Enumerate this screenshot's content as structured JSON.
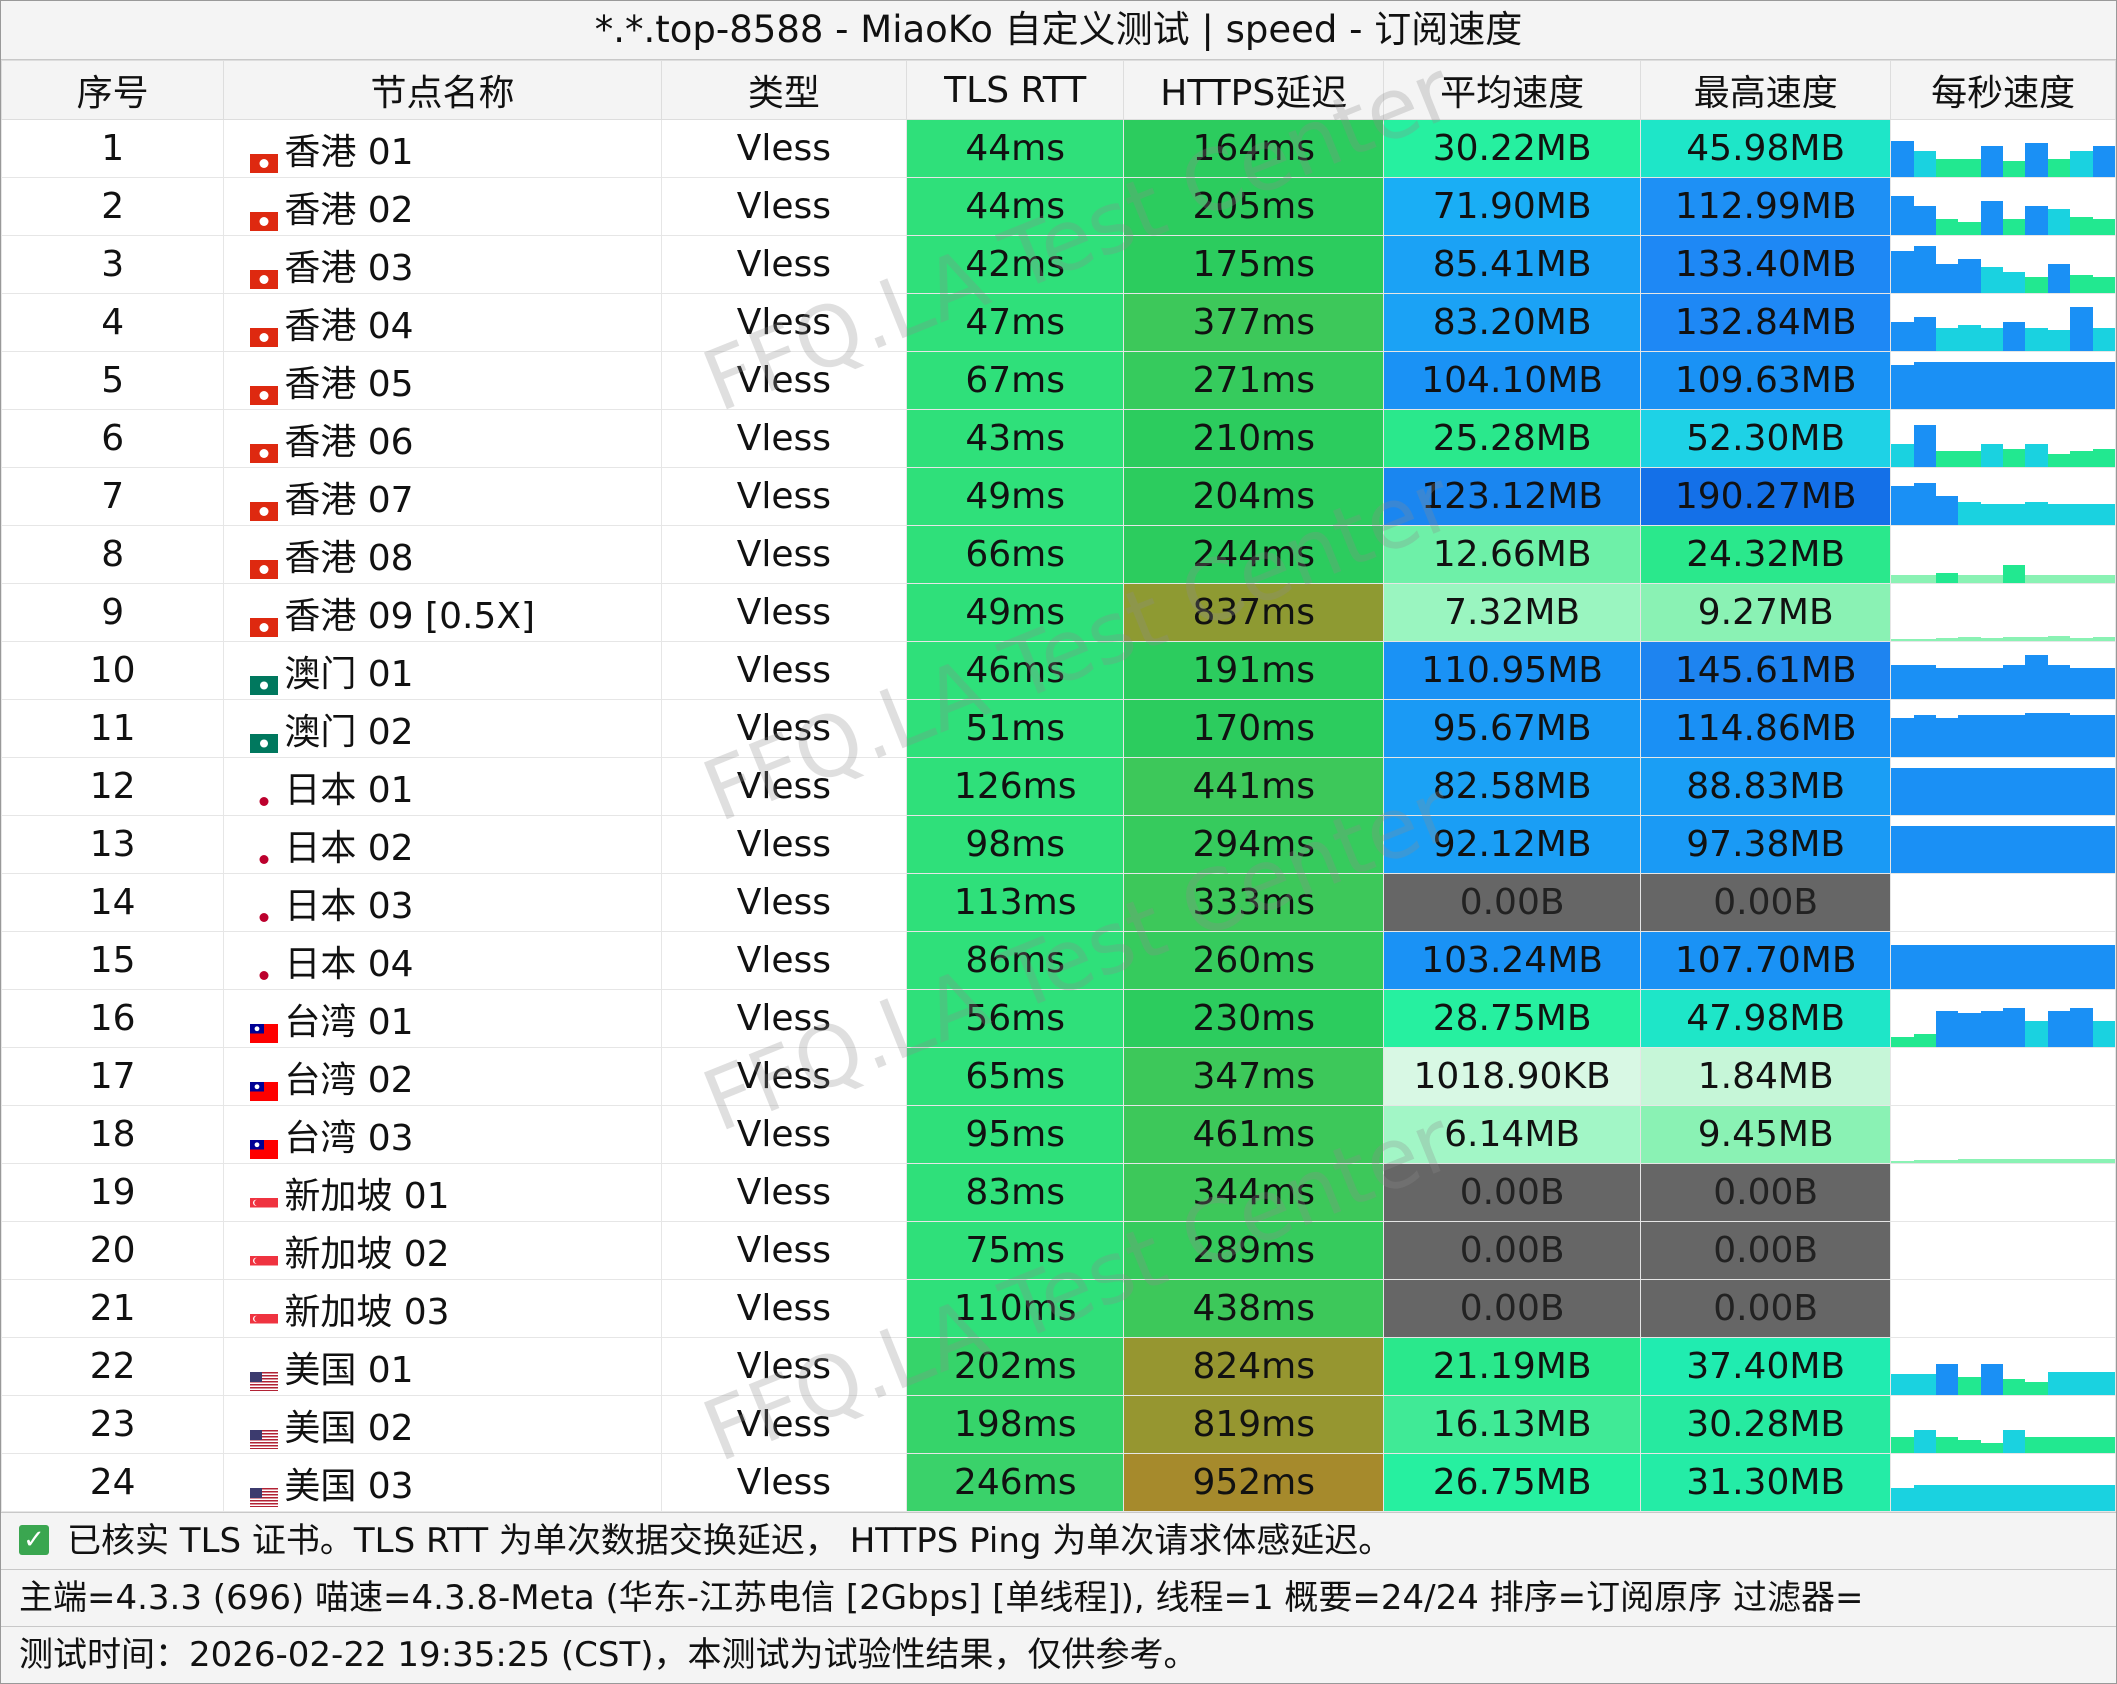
{
  "title": "*.*.top-8588 - MiaoKo 自定义测试 | speed - 订阅速度",
  "headers": [
    "序号",
    "节点名称",
    "类型",
    "TLS RTT",
    "HTTPS延迟",
    "平均速度",
    "最高速度",
    "每秒速度"
  ],
  "rows": [
    {
      "idx": "1",
      "flag": "hk",
      "name": "香港 01",
      "type": "Vless",
      "tls": "44ms",
      "https": "164ms",
      "avg": "30.22MB",
      "max": "45.98MB",
      "tls_color": "#2fe07a",
      "https_color": "#2ccc5e",
      "avg_color": "#26f0a0",
      "max_color": "#1ee6c8",
      "bars": [
        0.7,
        0.5,
        0.35,
        0.35,
        0.6,
        0.3,
        0.65,
        0.35,
        0.5,
        0.6
      ]
    },
    {
      "idx": "2",
      "flag": "hk",
      "name": "香港 02",
      "type": "Vless",
      "tls": "44ms",
      "https": "205ms",
      "avg": "71.90MB",
      "max": "112.99MB",
      "tls_color": "#2fe07a",
      "https_color": "#2ccc5e",
      "avg_color": "#1aaef5",
      "max_color": "#1e90f5",
      "bars": [
        0.75,
        0.55,
        0.3,
        0.25,
        0.65,
        0.3,
        0.55,
        0.5,
        0.35,
        0.3
      ]
    },
    {
      "idx": "3",
      "flag": "hk",
      "name": "香港 03",
      "type": "Vless",
      "tls": "42ms",
      "https": "175ms",
      "avg": "85.41MB",
      "max": "133.40MB",
      "tls_color": "#2fe07a",
      "https_color": "#2ccc5e",
      "avg_color": "#1ba2f5",
      "max_color": "#1e88f5",
      "bars": [
        0.8,
        0.9,
        0.55,
        0.65,
        0.5,
        0.4,
        0.3,
        0.55,
        0.35,
        0.3
      ]
    },
    {
      "idx": "4",
      "flag": "hk",
      "name": "香港 04",
      "type": "Vless",
      "tls": "47ms",
      "https": "377ms",
      "avg": "83.20MB",
      "max": "132.84MB",
      "tls_color": "#2fe07a",
      "https_color": "#3dc85a",
      "avg_color": "#1ba2f5",
      "max_color": "#1e88f5",
      "bars": [
        0.55,
        0.65,
        0.45,
        0.5,
        0.45,
        0.55,
        0.45,
        0.4,
        0.85,
        0.45
      ]
    },
    {
      "idx": "5",
      "flag": "hk",
      "name": "香港 05",
      "type": "Vless",
      "tls": "67ms",
      "https": "271ms",
      "avg": "104.10MB",
      "max": "109.63MB",
      "tls_color": "#2fe07a",
      "https_color": "#36cb5d",
      "avg_color": "#1a92f5",
      "max_color": "#1a92f5",
      "bars": [
        0.85,
        0.9,
        0.9,
        0.9,
        0.9,
        0.9,
        0.9,
        0.9,
        0.9,
        0.9
      ]
    },
    {
      "idx": "6",
      "flag": "hk",
      "name": "香港 06",
      "type": "Vless",
      "tls": "43ms",
      "https": "210ms",
      "avg": "25.28MB",
      "max": "52.30MB",
      "tls_color": "#2fe07a",
      "https_color": "#2ccc5e",
      "avg_color": "#2ae88c",
      "max_color": "#1ed2e6",
      "bars": [
        0.45,
        0.8,
        0.3,
        0.3,
        0.45,
        0.35,
        0.45,
        0.25,
        0.3,
        0.35
      ]
    },
    {
      "idx": "7",
      "flag": "hk",
      "name": "香港 07",
      "type": "Vless",
      "tls": "49ms",
      "https": "204ms",
      "avg": "123.12MB",
      "max": "190.27MB",
      "tls_color": "#2fe07a",
      "https_color": "#2ccc5e",
      "avg_color": "#1a86f0",
      "max_color": "#1470e8",
      "bars": [
        0.75,
        0.8,
        0.55,
        0.45,
        0.4,
        0.4,
        0.45,
        0.4,
        0.4,
        0.4
      ]
    },
    {
      "idx": "8",
      "flag": "hk",
      "name": "香港 08",
      "type": "Vless",
      "tls": "66ms",
      "https": "244ms",
      "avg": "12.66MB",
      "max": "24.32MB",
      "tls_color": "#2fe07a",
      "https_color": "#2ccc5e",
      "avg_color": "#6ef0a8",
      "max_color": "#2ae88c",
      "bars": [
        0.15,
        0.15,
        0.2,
        0.15,
        0.15,
        0.35,
        0.15,
        0.15,
        0.15,
        0.15
      ]
    },
    {
      "idx": "9",
      "flag": "hk",
      "name": "香港 09 [0.5X]",
      "type": "Vless",
      "tls": "49ms",
      "https": "837ms",
      "avg": "7.32MB",
      "max": "9.27MB",
      "tls_color": "#2fe07a",
      "https_color": "#8e9a32",
      "avg_color": "#9af5c0",
      "max_color": "#8af2b4",
      "bars": [
        0.04,
        0.04,
        0.06,
        0.08,
        0.06,
        0.08,
        0.08,
        0.1,
        0.06,
        0.08
      ]
    },
    {
      "idx": "10",
      "flag": "mo",
      "name": "澳门 01",
      "type": "Vless",
      "tls": "46ms",
      "https": "191ms",
      "avg": "110.95MB",
      "max": "145.61MB",
      "tls_color": "#2fe07a",
      "https_color": "#2ccc5e",
      "avg_color": "#1a92f5",
      "max_color": "#1e84f0",
      "bars": [
        0.65,
        0.65,
        0.6,
        0.6,
        0.6,
        0.65,
        0.85,
        0.65,
        0.6,
        0.6
      ]
    },
    {
      "idx": "11",
      "flag": "mo",
      "name": "澳门 02",
      "type": "Vless",
      "tls": "51ms",
      "https": "170ms",
      "avg": "95.67MB",
      "max": "114.86MB",
      "tls_color": "#2fe07a",
      "https_color": "#2ccc5e",
      "avg_color": "#1a9af5",
      "max_color": "#1a90f5",
      "bars": [
        0.75,
        0.8,
        0.75,
        0.8,
        0.8,
        0.8,
        0.85,
        0.85,
        0.8,
        0.8
      ]
    },
    {
      "idx": "12",
      "flag": "jp",
      "name": "日本 01",
      "type": "Vless",
      "tls": "126ms",
      "https": "441ms",
      "avg": "82.58MB",
      "max": "88.83MB",
      "tls_color": "#2fe07a",
      "https_color": "#3dc85a",
      "avg_color": "#1ba2f5",
      "max_color": "#1a9ef5",
      "bars": [
        0.9,
        0.9,
        0.9,
        0.9,
        0.9,
        0.9,
        0.9,
        0.9,
        0.9,
        0.9
      ]
    },
    {
      "idx": "13",
      "flag": "jp",
      "name": "日本 02",
      "type": "Vless",
      "tls": "98ms",
      "https": "294ms",
      "avg": "92.12MB",
      "max": "97.38MB",
      "tls_color": "#2fe07a",
      "https_color": "#36cb5d",
      "avg_color": "#1a9ef5",
      "max_color": "#1a9af5",
      "bars": [
        0.9,
        0.9,
        0.9,
        0.9,
        0.9,
        0.9,
        0.9,
        0.9,
        0.9,
        0.9
      ]
    },
    {
      "idx": "14",
      "flag": "jp",
      "name": "日本 03",
      "type": "Vless",
      "tls": "113ms",
      "https": "333ms",
      "avg": "0.00B",
      "max": "0.00B",
      "tls_color": "#2fe07a",
      "https_color": "#3dc85a",
      "avg_color": "#666666",
      "max_color": "#666666",
      "bars": [
        0,
        0,
        0,
        0,
        0,
        0,
        0,
        0,
        0,
        0
      ]
    },
    {
      "idx": "15",
      "flag": "jp",
      "name": "日本 04",
      "type": "Vless",
      "tls": "86ms",
      "https": "260ms",
      "avg": "103.24MB",
      "max": "107.70MB",
      "tls_color": "#2fe07a",
      "https_color": "#36cb5d",
      "avg_color": "#1a92f5",
      "max_color": "#1a92f5",
      "bars": [
        0.85,
        0.85,
        0.85,
        0.85,
        0.85,
        0.85,
        0.85,
        0.85,
        0.85,
        0.85
      ]
    },
    {
      "idx": "16",
      "flag": "tw",
      "name": "台湾 01",
      "type": "Vless",
      "tls": "56ms",
      "https": "230ms",
      "avg": "28.75MB",
      "max": "47.98MB",
      "tls_color": "#2fe07a",
      "https_color": "#2ccc5e",
      "avg_color": "#26f0a0",
      "max_color": "#1ee6c8",
      "bars": [
        0.2,
        0.25,
        0.7,
        0.65,
        0.7,
        0.75,
        0.5,
        0.7,
        0.75,
        0.5
      ]
    },
    {
      "idx": "17",
      "flag": "tw",
      "name": "台湾 02",
      "type": "Vless",
      "tls": "65ms",
      "https": "347ms",
      "avg": "1018.90KB",
      "max": "1.84MB",
      "tls_color": "#2fe07a",
      "https_color": "#3dc85a",
      "avg_color": "#d8f8e4",
      "max_color": "#c6f6d8",
      "bars": [
        0,
        0,
        0,
        0,
        0,
        0,
        0,
        0,
        0,
        0
      ]
    },
    {
      "idx": "18",
      "flag": "tw",
      "name": "台湾 03",
      "type": "Vless",
      "tls": "95ms",
      "https": "461ms",
      "avg": "6.14MB",
      "max": "9.45MB",
      "tls_color": "#2fe07a",
      "https_color": "#3dc85a",
      "avg_color": "#a2f6c6",
      "max_color": "#8af2b4",
      "bars": [
        0.04,
        0.06,
        0.06,
        0.08,
        0.08,
        0.08,
        0.08,
        0.08,
        0.08,
        0.08
      ]
    },
    {
      "idx": "19",
      "flag": "sg",
      "name": "新加坡 01",
      "type": "Vless",
      "tls": "83ms",
      "https": "344ms",
      "avg": "0.00B",
      "max": "0.00B",
      "tls_color": "#2fe07a",
      "https_color": "#3dc85a",
      "avg_color": "#666666",
      "max_color": "#666666",
      "bars": [
        0,
        0,
        0,
        0,
        0,
        0,
        0,
        0,
        0,
        0
      ]
    },
    {
      "idx": "20",
      "flag": "sg",
      "name": "新加坡 02",
      "type": "Vless",
      "tls": "75ms",
      "https": "289ms",
      "avg": "0.00B",
      "max": "0.00B",
      "tls_color": "#2fe07a",
      "https_color": "#36cb5d",
      "avg_color": "#666666",
      "max_color": "#666666",
      "bars": [
        0,
        0,
        0,
        0,
        0,
        0,
        0,
        0,
        0,
        0
      ]
    },
    {
      "idx": "21",
      "flag": "sg",
      "name": "新加坡 03",
      "type": "Vless",
      "tls": "110ms",
      "https": "438ms",
      "avg": "0.00B",
      "max": "0.00B",
      "tls_color": "#2fe07a",
      "https_color": "#3dc85a",
      "avg_color": "#666666",
      "max_color": "#666666",
      "bars": [
        0,
        0,
        0,
        0,
        0,
        0,
        0,
        0,
        0,
        0
      ]
    },
    {
      "idx": "22",
      "flag": "us",
      "name": "美国 01",
      "type": "Vless",
      "tls": "202ms",
      "https": "824ms",
      "avg": "21.19MB",
      "max": "37.40MB",
      "tls_color": "#36d46a",
      "https_color": "#969630",
      "avg_color": "#2ae88c",
      "max_color": "#20ecb0",
      "bars": [
        0.4,
        0.4,
        0.6,
        0.35,
        0.6,
        0.3,
        0.25,
        0.45,
        0.45,
        0.45
      ]
    },
    {
      "idx": "23",
      "flag": "us",
      "name": "美国 02",
      "type": "Vless",
      "tls": "198ms",
      "https": "819ms",
      "avg": "16.13MB",
      "max": "30.28MB",
      "tls_color": "#36d46a",
      "https_color": "#969630",
      "avg_color": "#40ea96",
      "max_color": "#26eaa0",
      "bars": [
        0.3,
        0.45,
        0.3,
        0.25,
        0.2,
        0.45,
        0.3,
        0.3,
        0.3,
        0.3
      ]
    },
    {
      "idx": "24",
      "flag": "us",
      "name": "美国 03",
      "type": "Vless",
      "tls": "246ms",
      "https": "952ms",
      "avg": "26.75MB",
      "max": "31.30MB",
      "tls_color": "#3ad26a",
      "https_color": "#a68a2c",
      "avg_color": "#26f0a0",
      "max_color": "#24eca6",
      "bars": [
        0.45,
        0.5,
        0.5,
        0.5,
        0.5,
        0.5,
        0.5,
        0.5,
        0.5,
        0.5
      ]
    }
  ],
  "footer": {
    "tls_note": "已核实 TLS 证书。TLS RTT 为单次数据交换延迟， HTTPS Ping 为单次请求体感延迟。",
    "version_line": "主端=4.3.3 (696) 喵速=4.3.8-Meta (华东-江苏电信 [2Gbps] [单线程]), 线程=1 概要=24/24 排序=订阅原序 过滤器=",
    "time_line": "测试时间：2026-02-22 19:35:25 (CST)，本测试为试验性结果，仅供参考。"
  },
  "watermark": "FFQ.LA Test Center"
}
